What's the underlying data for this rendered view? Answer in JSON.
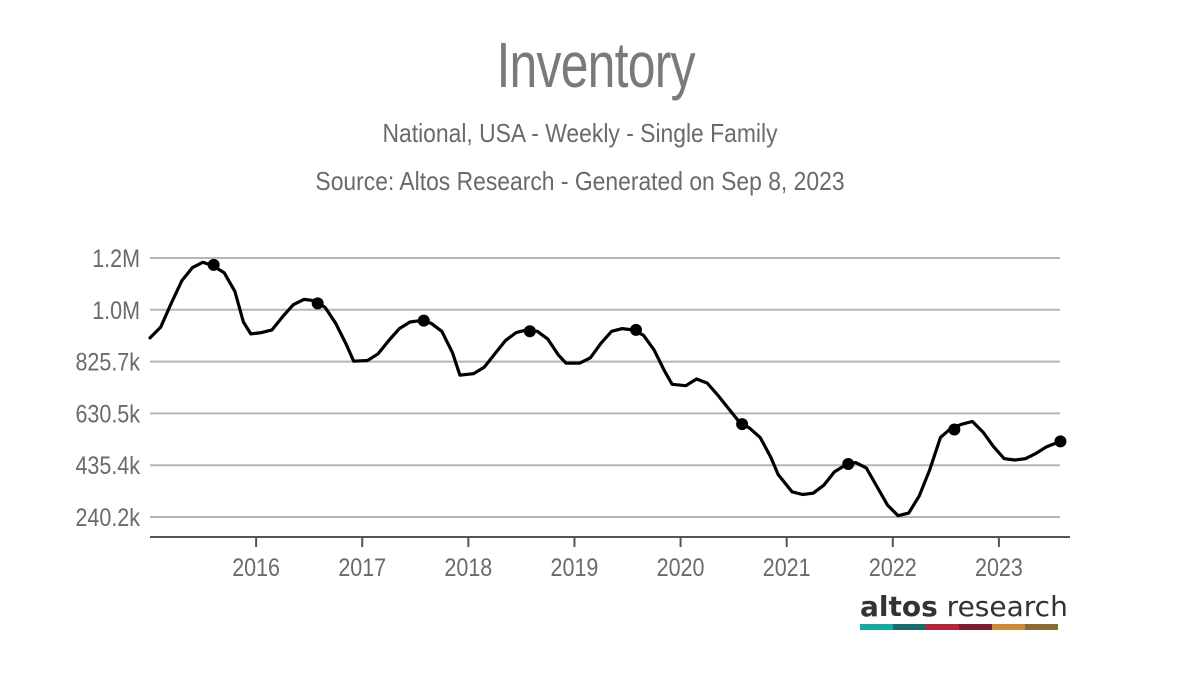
{
  "chart_data": {
    "type": "line",
    "title": "Inventory",
    "subtitle": "National, USA - Weekly - Single Family",
    "source": "Source: Altos Research - Generated on Sep 8, 2023",
    "x_tick_labels": [
      "2016",
      "2017",
      "2018",
      "2019",
      "2020",
      "2021",
      "2022",
      "2023"
    ],
    "x_ticks": [
      2016,
      2017,
      2018,
      2019,
      2020,
      2021,
      2022,
      2023
    ],
    "xlim": [
      2015.0,
      2023.67
    ],
    "y_tick_labels": [
      "240.2k",
      "435.4k",
      "630.5k",
      "825.7k",
      "1.0M",
      "1.2M"
    ],
    "y_ticks": [
      240200,
      435400,
      630500,
      825700,
      1020900,
      1216000
    ],
    "ylim": [
      160000,
      1216000
    ],
    "grid": "horizontal",
    "line_color": "#000000",
    "series": [
      {
        "values": [
          [
            2015.0,
            915000
          ],
          [
            2015.1,
            955000
          ],
          [
            2015.2,
            1045000
          ],
          [
            2015.3,
            1130000
          ],
          [
            2015.4,
            1180000
          ],
          [
            2015.5,
            1200000
          ],
          [
            2015.6,
            1185000
          ],
          [
            2015.7,
            1160000
          ],
          [
            2015.8,
            1090000
          ],
          [
            2015.88,
            975000
          ],
          [
            2015.95,
            930000
          ],
          [
            2016.05,
            935000
          ],
          [
            2016.15,
            945000
          ],
          [
            2016.25,
            995000
          ],
          [
            2016.35,
            1040000
          ],
          [
            2016.45,
            1060000
          ],
          [
            2016.55,
            1055000
          ],
          [
            2016.65,
            1030000
          ],
          [
            2016.75,
            970000
          ],
          [
            2016.85,
            890000
          ],
          [
            2016.92,
            827000
          ],
          [
            2017.05,
            830000
          ],
          [
            2017.15,
            855000
          ],
          [
            2017.25,
            905000
          ],
          [
            2017.35,
            950000
          ],
          [
            2017.45,
            975000
          ],
          [
            2017.55,
            980000
          ],
          [
            2017.65,
            970000
          ],
          [
            2017.75,
            940000
          ],
          [
            2017.85,
            860000
          ],
          [
            2017.92,
            775000
          ],
          [
            2018.05,
            780000
          ],
          [
            2018.15,
            805000
          ],
          [
            2018.25,
            855000
          ],
          [
            2018.35,
            905000
          ],
          [
            2018.45,
            935000
          ],
          [
            2018.55,
            945000
          ],
          [
            2018.65,
            940000
          ],
          [
            2018.75,
            910000
          ],
          [
            2018.85,
            850000
          ],
          [
            2018.92,
            820000
          ],
          [
            2019.05,
            820000
          ],
          [
            2019.15,
            840000
          ],
          [
            2019.25,
            895000
          ],
          [
            2019.35,
            940000
          ],
          [
            2019.45,
            950000
          ],
          [
            2019.55,
            945000
          ],
          [
            2019.65,
            925000
          ],
          [
            2019.75,
            870000
          ],
          [
            2019.85,
            790000
          ],
          [
            2019.92,
            740000
          ],
          [
            2020.05,
            735000
          ],
          [
            2020.15,
            760000
          ],
          [
            2020.25,
            745000
          ],
          [
            2020.35,
            700000
          ],
          [
            2020.45,
            650000
          ],
          [
            2020.55,
            600000
          ],
          [
            2020.65,
            575000
          ],
          [
            2020.75,
            540000
          ],
          [
            2020.85,
            465000
          ],
          [
            2020.92,
            400000
          ],
          [
            2021.05,
            335000
          ],
          [
            2021.15,
            325000
          ],
          [
            2021.25,
            330000
          ],
          [
            2021.35,
            360000
          ],
          [
            2021.45,
            410000
          ],
          [
            2021.55,
            435000
          ],
          [
            2021.65,
            445000
          ],
          [
            2021.75,
            425000
          ],
          [
            2021.85,
            355000
          ],
          [
            2021.95,
            285000
          ],
          [
            2022.05,
            245000
          ],
          [
            2022.15,
            255000
          ],
          [
            2022.25,
            320000
          ],
          [
            2022.35,
            420000
          ],
          [
            2022.45,
            540000
          ],
          [
            2022.55,
            575000
          ],
          [
            2022.65,
            590000
          ],
          [
            2022.75,
            600000
          ],
          [
            2022.85,
            560000
          ],
          [
            2022.95,
            505000
          ],
          [
            2023.05,
            460000
          ],
          [
            2023.15,
            455000
          ],
          [
            2023.25,
            460000
          ],
          [
            2023.35,
            480000
          ],
          [
            2023.45,
            505000
          ],
          [
            2023.58,
            525000
          ]
        ],
        "markers": [
          [
            2015.6,
            1190000
          ],
          [
            2016.58,
            1045000
          ],
          [
            2017.58,
            980000
          ],
          [
            2018.58,
            940000
          ],
          [
            2019.58,
            945000
          ],
          [
            2020.58,
            590000
          ],
          [
            2021.58,
            440000
          ],
          [
            2022.58,
            570000
          ],
          [
            2023.58,
            525000
          ]
        ]
      }
    ]
  },
  "logo": {
    "word1": "altos",
    "word2": " research",
    "bar_colors": [
      "#1aa8a0",
      "#1f6b6b",
      "#b0273a",
      "#7a1e2e",
      "#c98a3a",
      "#8a6a35"
    ]
  }
}
